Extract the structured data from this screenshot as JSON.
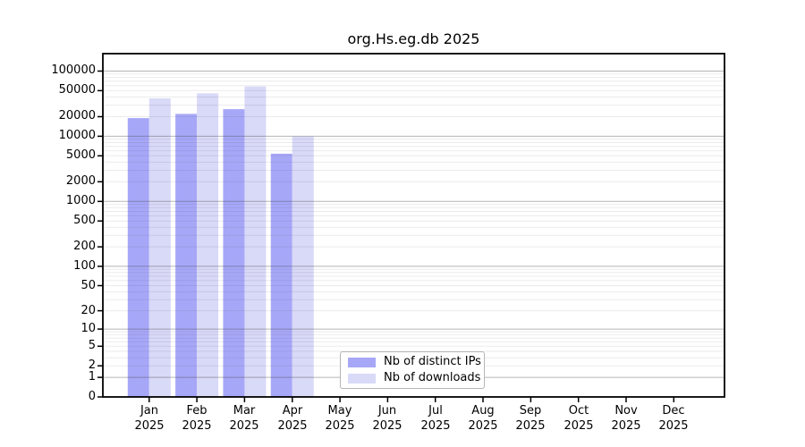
{
  "chart_data": {
    "type": "bar",
    "title": "org.Hs.eg.db 2025",
    "scale": "log10(1+x)",
    "grid": "horizontal, log minor + darker decade lines",
    "legend_position": "bottom-center-left inside plot",
    "categories": [
      "Jan",
      "Feb",
      "Mar",
      "Apr",
      "May",
      "Jun",
      "Jul",
      "Aug",
      "Sep",
      "Oct",
      "Nov",
      "Dec"
    ],
    "category_year": "2025",
    "yticks": [
      0,
      1,
      2,
      5,
      10,
      20,
      50,
      100,
      200,
      500,
      1000,
      2000,
      5000,
      10000,
      20000,
      50000,
      100000
    ],
    "ylim": [
      0,
      185000
    ],
    "series": [
      {
        "name": "Nb of distinct IPs",
        "color": "#a7a7f8",
        "values": [
          19000,
          22000,
          26000,
          5400,
          0,
          0,
          0,
          0,
          0,
          0,
          0,
          0
        ]
      },
      {
        "name": "Nb of downloads",
        "color": "#d9d9f8",
        "values": [
          38000,
          45500,
          58000,
          9900,
          0,
          0,
          0,
          0,
          0,
          0,
          0,
          0
        ]
      }
    ]
  }
}
